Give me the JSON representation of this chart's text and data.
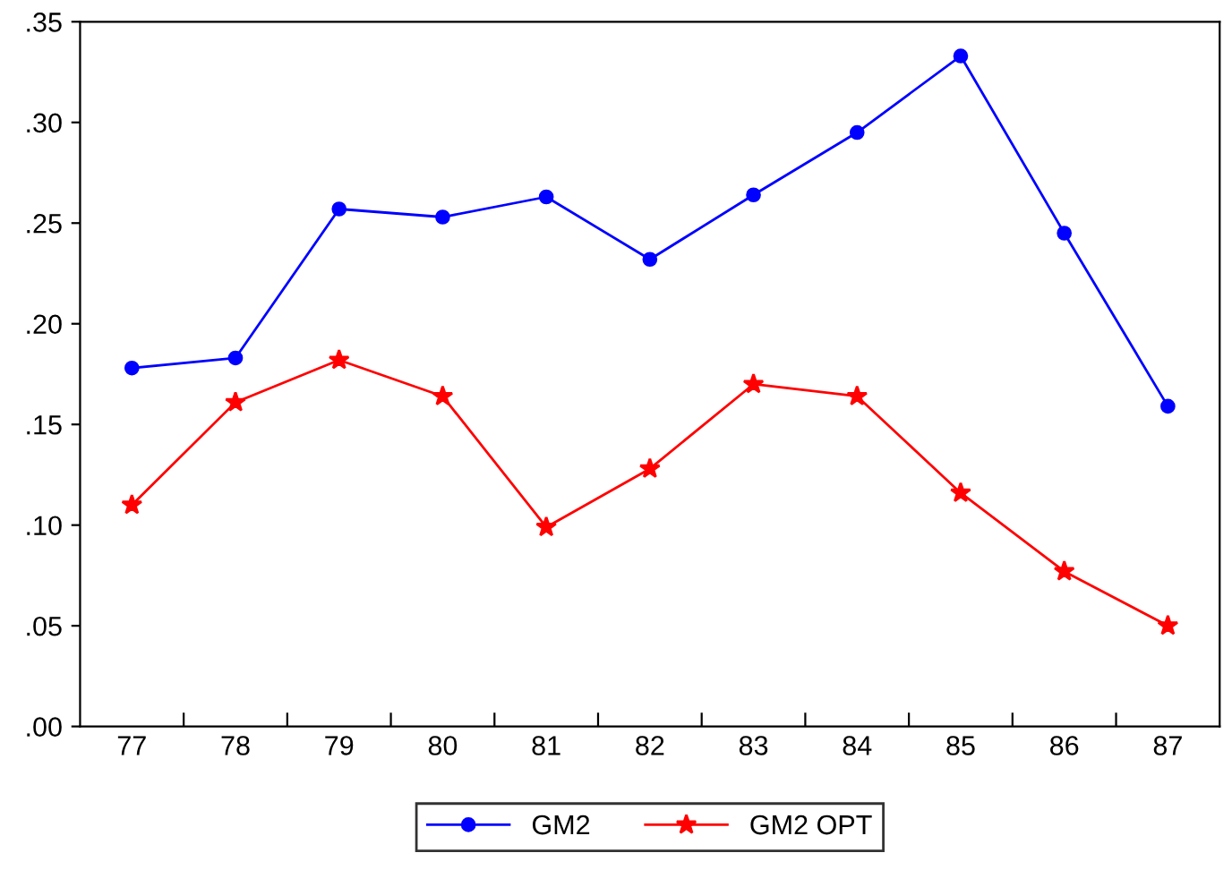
{
  "chart_data": {
    "type": "line",
    "categories": [
      "77",
      "78",
      "79",
      "80",
      "81",
      "82",
      "83",
      "84",
      "85",
      "86",
      "87"
    ],
    "series": [
      {
        "name": "GM2",
        "color": "#0000ff",
        "marker": "circle",
        "values": [
          0.178,
          0.183,
          0.257,
          0.253,
          0.263,
          0.232,
          0.264,
          0.295,
          0.333,
          0.245,
          0.159
        ]
      },
      {
        "name": "GM2 OPT",
        "color": "#ff0000",
        "marker": "star",
        "values": [
          0.11,
          0.161,
          0.182,
          0.164,
          0.099,
          0.128,
          0.17,
          0.164,
          0.116,
          0.077,
          0.05
        ]
      }
    ],
    "ylim": [
      0,
      0.35
    ],
    "yticks": [
      {
        "value": 0,
        "label": ".00"
      },
      {
        "value": 0.05,
        "label": ".05"
      },
      {
        "value": 0.1,
        "label": ".10"
      },
      {
        "value": 0.15,
        "label": ".15"
      },
      {
        "value": 0.2,
        "label": ".20"
      },
      {
        "value": 0.25,
        "label": ".25"
      },
      {
        "value": 0.3,
        "label": ".30"
      },
      {
        "value": 0.35,
        "label": ".35"
      }
    ],
    "legend": "bottom",
    "grid": false,
    "line_style": "solid"
  }
}
